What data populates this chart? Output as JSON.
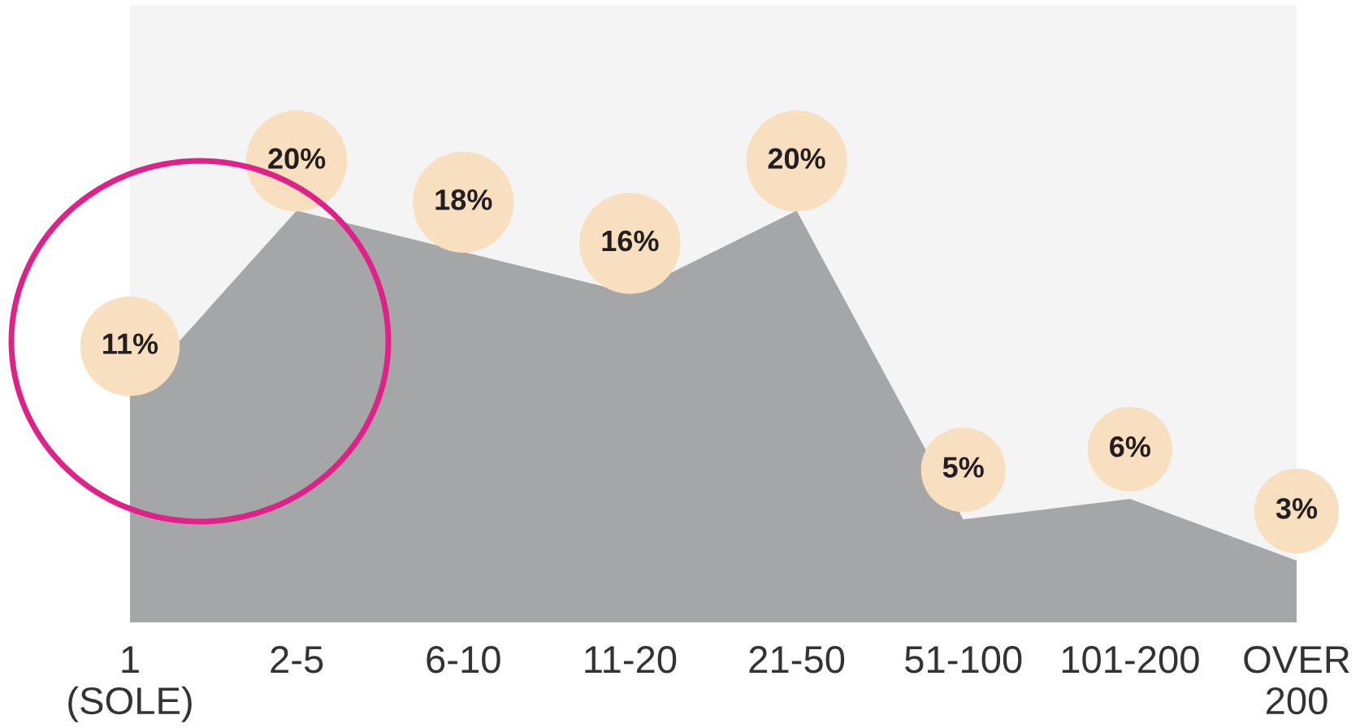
{
  "chart_data": {
    "type": "area",
    "categories": [
      "1\n(SOLE)",
      "2-5",
      "6-10",
      "11-20",
      "21-50",
      "51-100",
      "101-200",
      "OVER\n200"
    ],
    "series": [
      {
        "color": "#a5a6a7",
        "values": [
          11,
          20,
          18,
          16,
          20,
          5,
          6,
          3
        ],
        "value_labels": [
          "11%",
          "20%",
          "18%",
          "16%",
          "20%",
          "5%",
          "6%",
          "3%"
        ]
      }
    ],
    "grid": false,
    "tick_labels": "x"
  }
}
